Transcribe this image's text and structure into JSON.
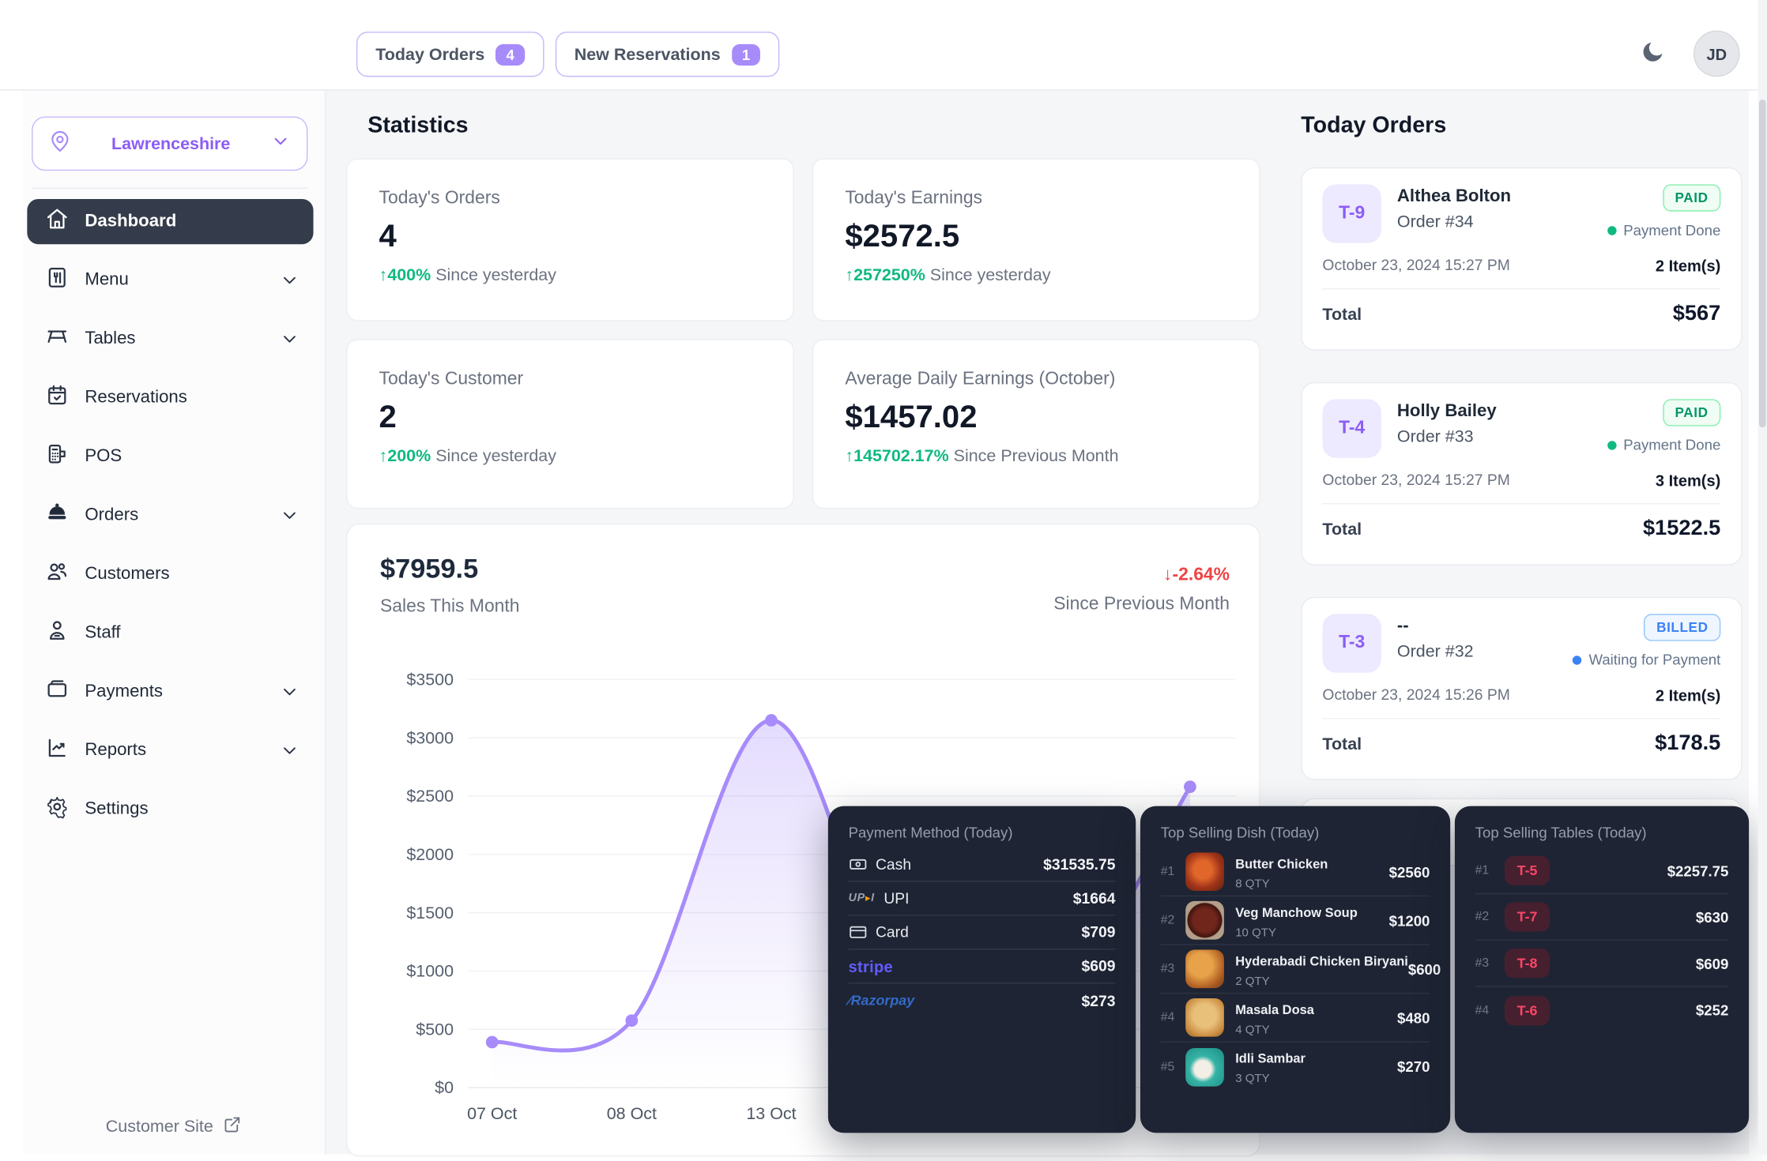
{
  "topbar": {
    "today_orders_btn": {
      "label": "Today Orders",
      "count": "4"
    },
    "new_reservations_btn": {
      "label": "New Reservations",
      "count": "1"
    },
    "avatar_initials": "JD"
  },
  "sidebar": {
    "location": "Lawrenceshire",
    "items": [
      {
        "label": "Dashboard",
        "active": true,
        "chevron": false
      },
      {
        "label": "Menu",
        "active": false,
        "chevron": true
      },
      {
        "label": "Tables",
        "active": false,
        "chevron": true
      },
      {
        "label": "Reservations",
        "active": false,
        "chevron": false
      },
      {
        "label": "POS",
        "active": false,
        "chevron": false
      },
      {
        "label": "Orders",
        "active": false,
        "chevron": true
      },
      {
        "label": "Customers",
        "active": false,
        "chevron": false
      },
      {
        "label": "Staff",
        "active": false,
        "chevron": false
      },
      {
        "label": "Payments",
        "active": false,
        "chevron": true
      },
      {
        "label": "Reports",
        "active": false,
        "chevron": true
      },
      {
        "label": "Settings",
        "active": false,
        "chevron": false
      }
    ],
    "footer_link": "Customer Site"
  },
  "statistics": {
    "heading": "Statistics",
    "cards": [
      {
        "title": "Today's Orders",
        "value": "4",
        "delta": "400%",
        "delta_dir": "up",
        "period": "Since yesterday"
      },
      {
        "title": "Today's Earnings",
        "value": "$2572.5",
        "delta": "257250%",
        "delta_dir": "up",
        "period": "Since yesterday"
      },
      {
        "title": "Today's Customer",
        "value": "2",
        "delta": "200%",
        "delta_dir": "up",
        "period": "Since yesterday"
      },
      {
        "title": "Average Daily Earnings (October)",
        "value": "$1457.02",
        "delta": "145702.17%",
        "delta_dir": "up",
        "period": "Since Previous Month"
      }
    ]
  },
  "sales_chart": {
    "total": "$7959.5",
    "subtitle": "Sales This Month",
    "delta": "-2.64%",
    "delta_dir": "down",
    "delta_period": "Since Previous Month"
  },
  "chart_data": {
    "type": "area",
    "title": "Sales This Month",
    "total_label": "$7959.5",
    "ylim": [
      0,
      3500
    ],
    "y_tick_labels": [
      "$0",
      "$500",
      "$1000",
      "$1500",
      "$2000",
      "$2500",
      "$3000",
      "$3500"
    ],
    "x_tick_labels_visible": [
      "07 Oct",
      "08 Oct",
      "13 Oct"
    ],
    "grid": true,
    "line_color": "#a78bfa",
    "points": [
      {
        "label": "07 Oct",
        "value": 390,
        "visible": true
      },
      {
        "label": "08 Oct",
        "value": 575,
        "visible": true
      },
      {
        "label": "13 Oct",
        "value": 3150,
        "visible": true
      },
      {
        "label": "",
        "value": 600,
        "visible": false
      },
      {
        "label": "",
        "value": 650,
        "visible": false
      },
      {
        "label": "",
        "value": 2580,
        "visible": true
      }
    ]
  },
  "today_orders_panel": {
    "heading": "Today Orders",
    "orders": [
      {
        "table": "T-9",
        "customer": "Althea Bolton",
        "order_no": "Order #34",
        "status": "PAID",
        "status_note": "Payment Done",
        "datetime": "October 23, 2024 15:27 PM",
        "items": "2 Item(s)",
        "total_label": "Total",
        "total": "$567"
      },
      {
        "table": "T-4",
        "customer": "Holly Bailey",
        "order_no": "Order #33",
        "status": "PAID",
        "status_note": "Payment Done",
        "datetime": "October 23, 2024 15:27 PM",
        "items": "3 Item(s)",
        "total_label": "Total",
        "total": "$1522.5"
      },
      {
        "table": "T-3",
        "customer": "--",
        "order_no": "Order #32",
        "status": "BILLED",
        "status_note": "Waiting for Payment",
        "datetime": "October 23, 2024 15:26 PM",
        "items": "2 Item(s)",
        "total_label": "Total",
        "total": "$178.5"
      }
    ]
  },
  "payment_methods": {
    "title": "Payment Method (Today)",
    "rows": [
      {
        "method": "Cash",
        "amount": "$31535.75",
        "icon": "banknote-icon"
      },
      {
        "method": "UPI",
        "amount": "$1664",
        "icon": "upi-logo"
      },
      {
        "method": "Card",
        "amount": "$709",
        "icon": "credit-card-icon"
      },
      {
        "method": "stripe",
        "amount": "$609",
        "icon": "stripe-logo"
      },
      {
        "method": "Razorpay",
        "amount": "$273",
        "icon": "razorpay-logo"
      }
    ]
  },
  "top_dishes": {
    "title": "Top Selling Dish (Today)",
    "rows": [
      {
        "rank": "#1",
        "name": "Butter Chicken",
        "qty": "8 QTY",
        "amount": "$2560"
      },
      {
        "rank": "#2",
        "name": "Veg Manchow Soup",
        "qty": "10 QTY",
        "amount": "$1200"
      },
      {
        "rank": "#3",
        "name": "Hyderabadi Chicken Biryani",
        "qty": "2 QTY",
        "amount": "$600"
      },
      {
        "rank": "#4",
        "name": "Masala Dosa",
        "qty": "4 QTY",
        "amount": "$480"
      },
      {
        "rank": "#5",
        "name": "Idli Sambar",
        "qty": "3 QTY",
        "amount": "$270"
      }
    ]
  },
  "top_tables": {
    "title": "Top Selling Tables (Today)",
    "rows": [
      {
        "rank": "#1",
        "table": "T-5",
        "amount": "$2257.75"
      },
      {
        "rank": "#2",
        "table": "T-7",
        "amount": "$630"
      },
      {
        "rank": "#3",
        "table": "T-8",
        "amount": "$609"
      },
      {
        "rank": "#4",
        "table": "T-6",
        "amount": "$252"
      }
    ]
  },
  "colors": {
    "accent_purple": "#8b5cf6",
    "badge_purple": "#a78bfa",
    "paid_green": "#059669",
    "billed_blue": "#3b82f6",
    "negative_red": "#ef4444",
    "dark_panel": "#1e2433",
    "table_chip_red": "#fb4668",
    "sidebar_active": "#343c4b"
  }
}
